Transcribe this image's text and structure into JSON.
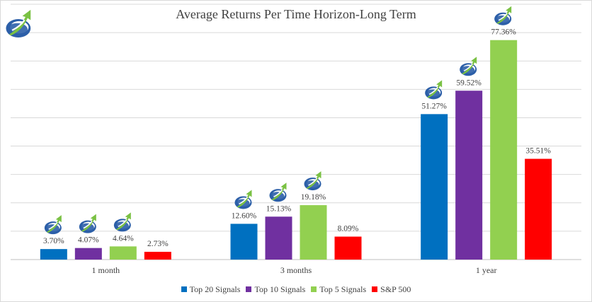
{
  "colors": {
    "grid": "#d9d9d9",
    "axis": "#bfbfbf",
    "text": "#404040",
    "logo_blue": "#2c5fa8",
    "logo_green": "#7ac143"
  },
  "logo_icon": "blue-green-swoosh-arrow-icon",
  "chart_data": {
    "type": "bar",
    "title": "Average Returns Per Time Horizon-Long Term",
    "xlabel": "",
    "ylabel": "",
    "ylim": [
      0,
      90
    ],
    "grid": true,
    "gridlines": [
      0,
      10,
      20,
      30,
      40,
      50,
      60,
      70,
      80,
      90
    ],
    "legend_position": "bottom",
    "categories": [
      "1 month",
      "3 months",
      "1 year"
    ],
    "series": [
      {
        "name": "Top 20 Signals",
        "color": "#0070c0",
        "values": [
          3.7,
          12.6,
          51.27
        ],
        "labels": [
          "3.70%",
          "12.60%",
          "51.27%"
        ],
        "logo": true
      },
      {
        "name": "Top 10 Signals",
        "color": "#7030a0",
        "values": [
          4.07,
          15.13,
          59.52
        ],
        "labels": [
          "4.07%",
          "15.13%",
          "59.52%"
        ],
        "logo": true
      },
      {
        "name": "Top 5 Signals",
        "color": "#92d050",
        "values": [
          4.64,
          19.18,
          77.36
        ],
        "labels": [
          "4.64%",
          "19.18%",
          "77.36%"
        ],
        "logo": true
      },
      {
        "name": "S&P 500",
        "color": "#ff0000",
        "values": [
          2.73,
          8.09,
          35.51
        ],
        "labels": [
          "2.73%",
          "8.09%",
          "35.51%"
        ],
        "logo": false
      }
    ]
  }
}
